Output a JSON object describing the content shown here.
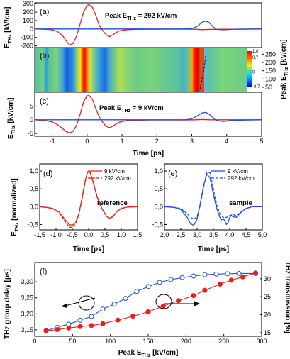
{
  "chart_data": [
    {
      "panel": "(a)",
      "type": "line",
      "ylabel_main": "E",
      "ylabel_sub": "THz",
      "ylabel_unit": " [kV/cm]",
      "annotation_main": "Peak E",
      "annotation_sub": "THz",
      "annotation_value": " = 292 kV/cm",
      "xlim": [
        -1.5,
        5
      ],
      "ylim": [
        -220,
        310
      ],
      "yticks": [
        300,
        200,
        100,
        0,
        -100,
        -200
      ],
      "colors": {
        "reference": "#e8201a",
        "sample": "#1f4fd6"
      },
      "series": [
        {
          "x": [
            -1.5,
            -1.2,
            -1.0,
            -0.85,
            -0.7,
            -0.6,
            -0.5,
            -0.4,
            -0.3,
            -0.2,
            -0.1,
            0.0,
            0.05,
            0.15,
            0.25,
            0.35,
            0.45,
            0.55,
            0.65,
            0.75,
            0.9,
            1.1,
            1.4,
            1.8,
            2.3,
            2.8,
            3.1,
            3.3,
            3.5,
            3.8,
            4.2,
            5.0
          ],
          "y": [
            0,
            -3,
            -10,
            -30,
            -80,
            -140,
            -190,
            -170,
            -80,
            60,
            200,
            280,
            290,
            260,
            160,
            40,
            -20,
            -70,
            -90,
            -65,
            -25,
            -10,
            -5,
            -3,
            -2,
            -2,
            -3,
            -8,
            -5,
            -3,
            -2,
            0
          ]
        },
        {
          "x": [
            -1.5,
            2.8,
            3.0,
            3.15,
            3.3,
            3.4,
            3.5,
            3.6,
            3.7,
            3.9,
            4.2,
            5.0
          ],
          "y": [
            0,
            0,
            5,
            30,
            80,
            95,
            75,
            30,
            -5,
            -10,
            -3,
            0
          ]
        }
      ]
    },
    {
      "panel": "(b)",
      "type": "heatmap",
      "ylabel_main": "Peak E",
      "ylabel_sub": "THz",
      "ylabel_unit": " [kV/cm]",
      "y_ticks": [
        250,
        200,
        150,
        100,
        50
      ],
      "ylim": [
        20,
        290
      ],
      "colorbar_ticks": [
        "1,0",
        "0,7",
        "0",
        "-0,7"
      ],
      "colorbar_range": [
        -0.7,
        1.0
      ]
    },
    {
      "panel": "(c)",
      "type": "line",
      "ylabel_main": "E",
      "ylabel_sub": "THz",
      "ylabel_unit": " [kV/cm]",
      "xlabel": "Time [ps]",
      "annotation_main": "Peak E",
      "annotation_sub": "THz",
      "annotation_value": " = 9 kV/cm",
      "xlim": [
        -1.5,
        5
      ],
      "ylim": [
        -6,
        10
      ],
      "yticks": [
        5,
        0,
        -5
      ],
      "xticks": [
        -1,
        0,
        1,
        2,
        3,
        4,
        5
      ],
      "series": [
        {
          "x": [
            -1.5,
            -1.2,
            -1.0,
            -0.85,
            -0.7,
            -0.6,
            -0.5,
            -0.4,
            -0.3,
            -0.2,
            -0.1,
            0.0,
            0.05,
            0.15,
            0.25,
            0.35,
            0.45,
            0.55,
            0.65,
            0.75,
            0.9,
            1.1,
            1.4,
            1.8,
            2.3,
            2.8,
            3.1,
            3.3,
            3.5,
            3.8,
            4.2,
            5.0
          ],
          "y": [
            0,
            -0.3,
            -0.8,
            -1.8,
            -3.2,
            -4.3,
            -4.8,
            -4.2,
            -2.0,
            2.0,
            6.5,
            8.7,
            8.9,
            7.5,
            4.0,
            1.0,
            -1.0,
            -2.4,
            -2.9,
            -2.2,
            -1.0,
            -0.4,
            -0.2,
            -0.1,
            -0.1,
            -0.1,
            0.0,
            0.1,
            0.0,
            0.0,
            0.0,
            0.0
          ]
        },
        {
          "x": [
            -1.5,
            2.8,
            3.0,
            3.15,
            3.3,
            3.4,
            3.5,
            3.6,
            3.7,
            3.9,
            4.2,
            5.0
          ],
          "y": [
            0,
            0,
            0.3,
            1.4,
            2.5,
            2.7,
            2.0,
            0.8,
            -0.3,
            -0.6,
            -0.2,
            0
          ]
        }
      ]
    },
    {
      "panel": "(d)",
      "type": "line",
      "ylabel_main": "E",
      "ylabel_sub": "THz",
      "ylabel_unit": " [normalized]",
      "xlabel": "Time [ps]",
      "annotation": "reference",
      "xlim": [
        -1.5,
        1.5
      ],
      "ylim": [
        -0.65,
        1.2
      ],
      "xticks": [
        "-1,5",
        "-1,0",
        "-0,5",
        "0,0",
        "0,5",
        "1,0",
        "1,5"
      ],
      "yticks": [
        "1,0",
        "0,5",
        "0,0",
        "-0,5"
      ],
      "legend": [
        "9 kV/cm",
        "292 kV/cm"
      ],
      "series": [
        {
          "name": "9 kV/cm",
          "style": "solid",
          "x": [
            -1.5,
            -1.3,
            -1.1,
            -0.9,
            -0.75,
            -0.6,
            -0.5,
            -0.4,
            -0.3,
            -0.2,
            -0.1,
            -0.03,
            0.05,
            0.15,
            0.25,
            0.35,
            0.45,
            0.55,
            0.65,
            0.75,
            0.85,
            1.0,
            1.2,
            1.5
          ],
          "y": [
            0.0,
            -0.02,
            -0.05,
            -0.15,
            -0.33,
            -0.5,
            -0.52,
            -0.45,
            -0.2,
            0.25,
            0.75,
            0.98,
            0.95,
            0.65,
            0.3,
            0.05,
            -0.12,
            -0.27,
            -0.33,
            -0.28,
            -0.15,
            -0.05,
            -0.01,
            0.0
          ]
        },
        {
          "name": "292 kV/cm",
          "style": "dashed",
          "x": [
            -1.5,
            -1.3,
            -1.1,
            -0.9,
            -0.75,
            -0.6,
            -0.5,
            -0.4,
            -0.3,
            -0.2,
            -0.1,
            -0.03,
            0.05,
            0.15,
            0.25,
            0.35,
            0.45,
            0.55,
            0.65,
            0.75,
            0.85,
            1.0,
            1.2,
            1.5
          ],
          "y": [
            0.0,
            -0.02,
            -0.05,
            -0.17,
            -0.38,
            -0.57,
            -0.58,
            -0.48,
            -0.22,
            0.22,
            0.72,
            0.97,
            0.96,
            0.67,
            0.32,
            0.06,
            -0.12,
            -0.26,
            -0.32,
            -0.27,
            -0.14,
            -0.05,
            -0.01,
            0.0
          ]
        }
      ]
    },
    {
      "panel": "(e)",
      "type": "line",
      "xlabel": "Time [ps]",
      "annotation": "sample",
      "xlim": [
        2.0,
        5.0
      ],
      "ylim": [
        -0.65,
        1.2
      ],
      "xticks": [
        "2,0",
        "2,5",
        "3,0",
        "3,5",
        "4,0",
        "4,5",
        "5,0"
      ],
      "yticks": [
        "1,0",
        "0,5",
        "0,0",
        "-0,5"
      ],
      "legend": [
        "9 kV/cm",
        "292 kV/cm"
      ],
      "series": [
        {
          "name": "9 kV/cm",
          "style": "solid",
          "x": [
            2.0,
            2.3,
            2.5,
            2.7,
            2.8,
            2.9,
            3.0,
            3.1,
            3.2,
            3.3,
            3.4,
            3.5,
            3.6,
            3.7,
            3.75,
            3.8,
            3.85,
            3.9,
            3.95,
            4.0,
            4.05,
            4.1,
            4.2,
            4.3,
            4.5,
            4.7,
            5.0
          ],
          "y": [
            0.0,
            -0.02,
            -0.08,
            -0.3,
            -0.48,
            -0.52,
            -0.35,
            0.1,
            0.6,
            0.92,
            0.8,
            0.35,
            -0.05,
            -0.3,
            -0.37,
            -0.33,
            -0.4,
            -0.5,
            -0.45,
            -0.3,
            -0.25,
            -0.28,
            -0.3,
            -0.2,
            -0.05,
            0.0,
            0.0
          ]
        },
        {
          "name": "292 kV/cm",
          "style": "dashed",
          "x": [
            2.0,
            2.3,
            2.5,
            2.7,
            2.8,
            2.9,
            3.0,
            3.1,
            3.2,
            3.3,
            3.4,
            3.5,
            3.6,
            3.7,
            3.8,
            3.9,
            4.0,
            4.1,
            4.2,
            4.3,
            4.5,
            4.7,
            5.0
          ],
          "y": [
            0.0,
            -0.02,
            -0.05,
            -0.2,
            -0.3,
            -0.35,
            -0.28,
            0.05,
            0.55,
            0.98,
            0.95,
            0.5,
            0.05,
            -0.2,
            -0.3,
            -0.3,
            -0.25,
            -0.22,
            -0.25,
            -0.18,
            -0.05,
            0.0,
            0.0
          ]
        }
      ]
    },
    {
      "panel": "(f)",
      "type": "line",
      "ylabel_left": "THz group delay [ps]",
      "ylabel_right": "THz transmission [%]",
      "xlabel_main": "Peak E",
      "xlabel_sub": "THz",
      "xlabel_unit": " [kV/cm]",
      "xlim": [
        0,
        300
      ],
      "ylim_left": [
        3.13,
        3.36
      ],
      "ylim_right": [
        14,
        34.5
      ],
      "xticks": [
        0,
        50,
        100,
        150,
        200,
        250,
        300
      ],
      "yticks_left": [
        "3,15",
        "3,20",
        "3,25",
        "3,30"
      ],
      "yticks_right": [
        15,
        20,
        25,
        30
      ],
      "series": [
        {
          "name": "",
          "axis": "left",
          "marker": "open-circle",
          "x": [
            15,
            30,
            45,
            60,
            75,
            90,
            105,
            120,
            135,
            150,
            165,
            180,
            195,
            210,
            225,
            240,
            255,
            270,
            292
          ],
          "y": [
            3.148,
            3.158,
            3.168,
            3.18,
            3.192,
            3.215,
            3.23,
            3.248,
            3.27,
            3.285,
            3.298,
            3.307,
            3.313,
            3.318,
            3.322,
            3.324,
            3.325,
            3.326,
            3.326
          ]
        },
        {
          "name": "",
          "axis": "right",
          "marker": "filled-circle",
          "x": [
            15,
            30,
            45,
            60,
            75,
            90,
            110,
            130,
            150,
            170,
            190,
            210,
            225,
            245,
            260,
            275,
            292
          ],
          "y": [
            15.5,
            15.9,
            16.3,
            16.7,
            17.0,
            17.5,
            18.5,
            19.6,
            20.8,
            22.4,
            23.9,
            25.3,
            26.8,
            28.5,
            29.6,
            30.5,
            31.6
          ]
        }
      ]
    }
  ]
}
